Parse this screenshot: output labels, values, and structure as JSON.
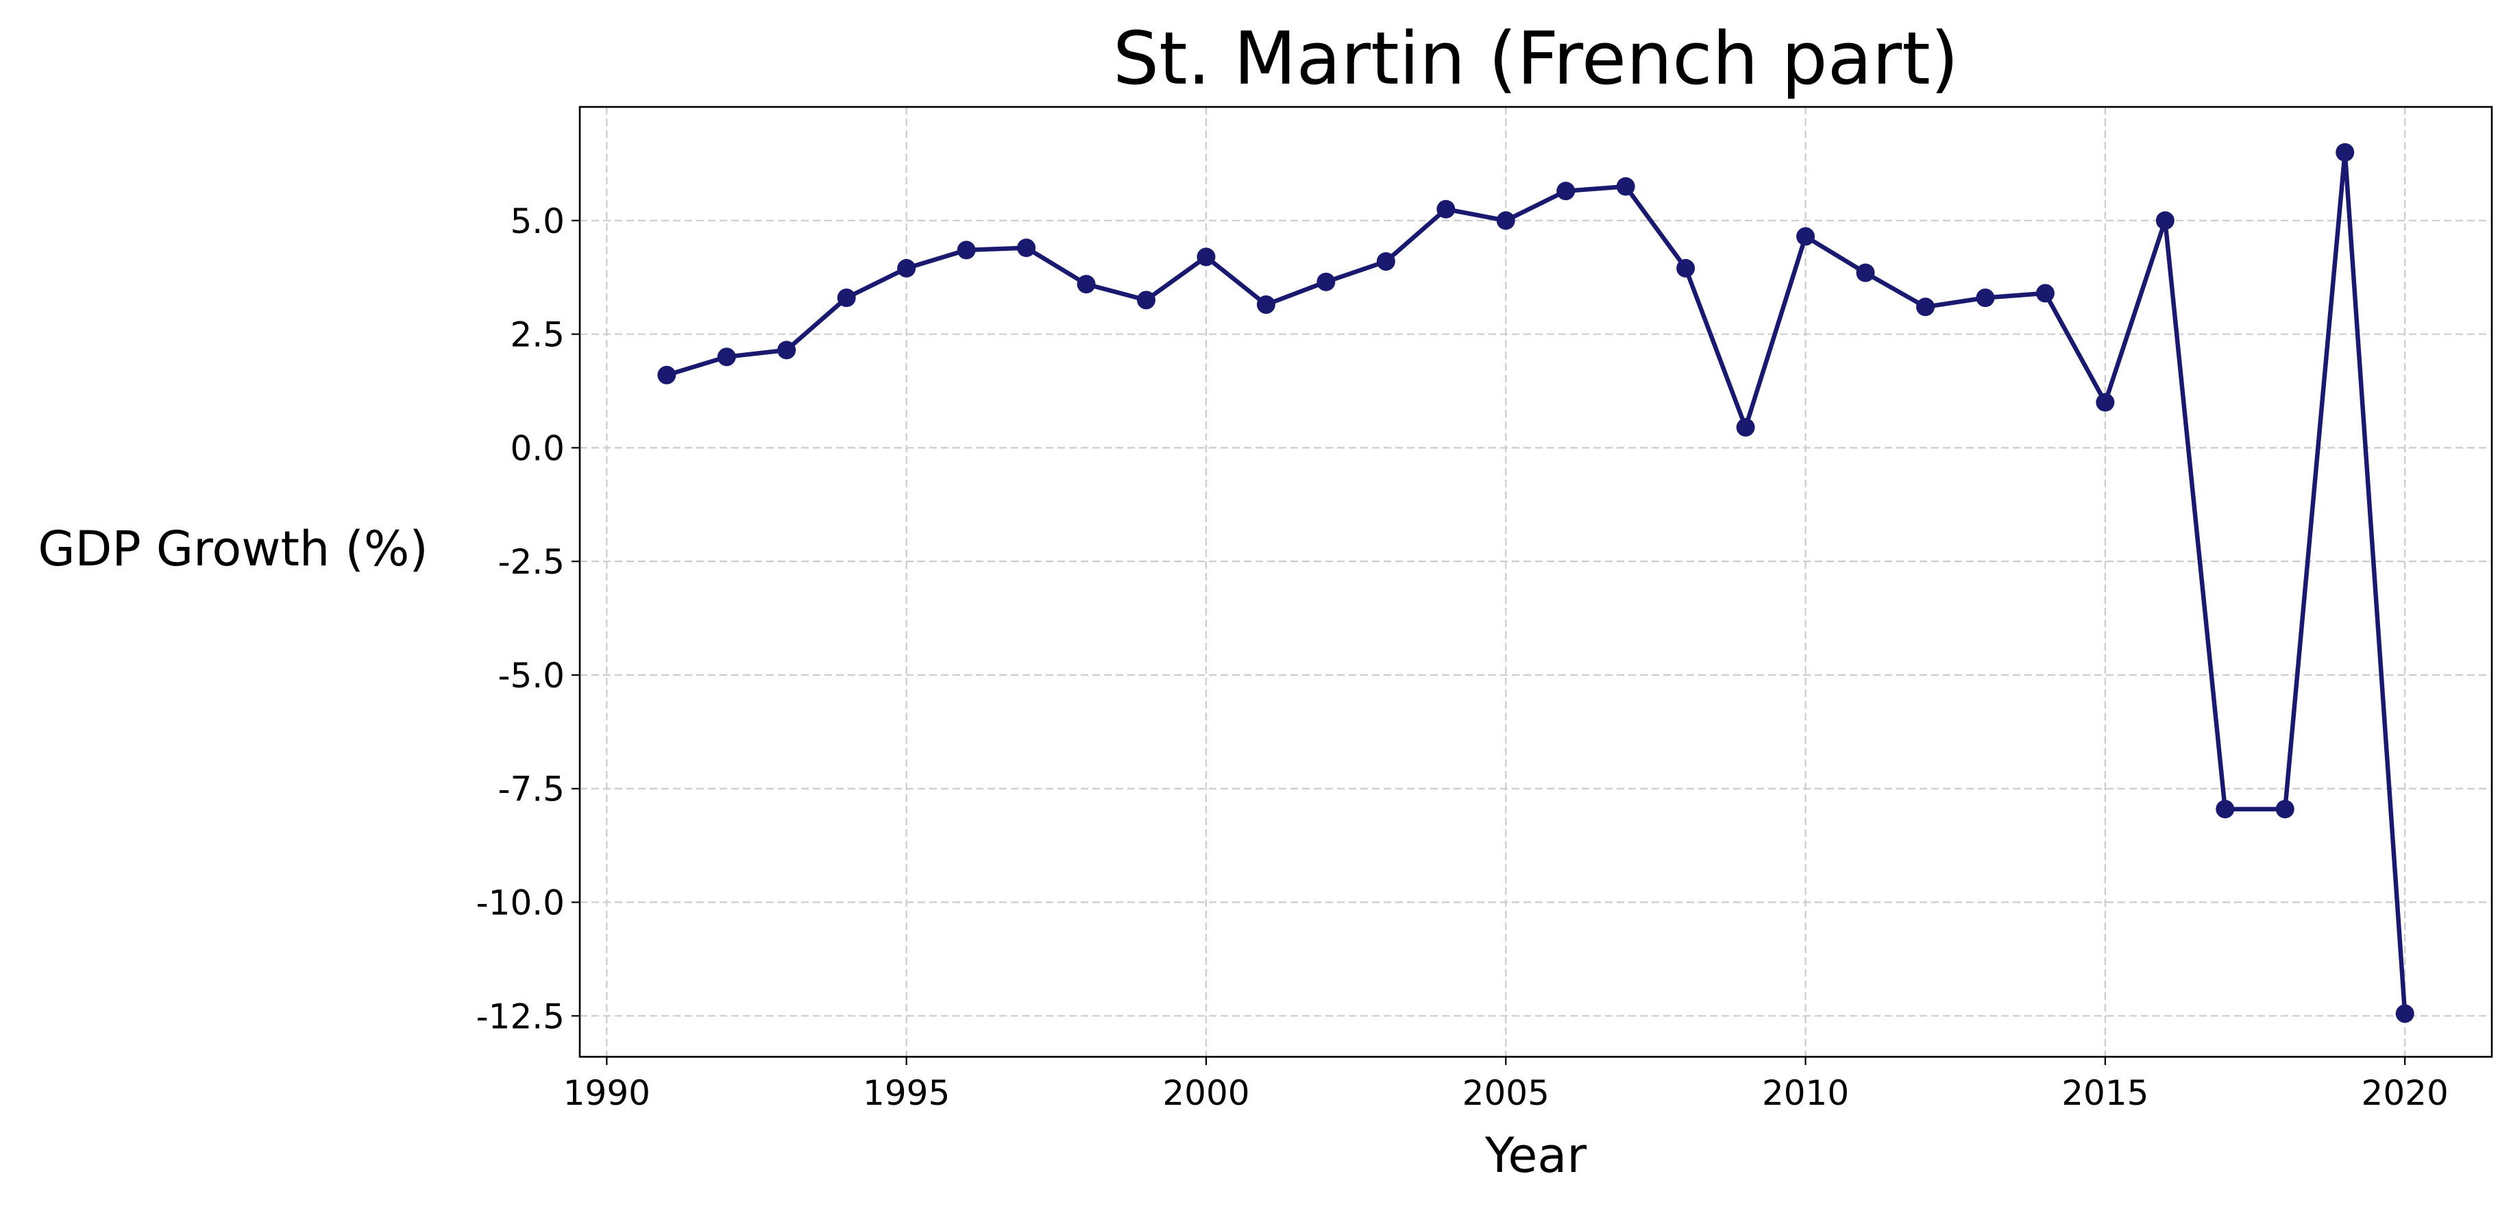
{
  "chart_data": {
    "type": "line",
    "title": "St. Martin (French part)",
    "xlabel": "Year",
    "ylabel": "GDP Growth (%)",
    "xlim": [
      1989.55,
      2021.45
    ],
    "ylim": [
      -13.4,
      7.5
    ],
    "x_ticks": [
      1990,
      1995,
      2000,
      2005,
      2010,
      2015,
      2020
    ],
    "x_tick_labels": [
      "1990",
      "1995",
      "2000",
      "2005",
      "2010",
      "2015",
      "2020"
    ],
    "y_ticks": [
      5.0,
      2.5,
      0.0,
      -2.5,
      -5.0,
      -7.5,
      -10.0,
      -12.5
    ],
    "y_tick_labels": [
      "5.0",
      "2.5",
      "0.0",
      "-2.5",
      "-5.0",
      "-7.5",
      "-10.0",
      "-12.5"
    ],
    "grid": true,
    "legend": "none",
    "series": [
      {
        "color": "#191970",
        "marker": "circle",
        "x": [
          1991,
          1992,
          1993,
          1994,
          1995,
          1996,
          1997,
          1998,
          1999,
          2000,
          2001,
          2002,
          2003,
          2004,
          2005,
          2006,
          2007,
          2008,
          2009,
          2010,
          2011,
          2012,
          2013,
          2014,
          2015,
          2016,
          2017,
          2018,
          2019,
          2020
        ],
        "y": [
          1.6,
          2.0,
          2.15,
          3.3,
          3.95,
          4.35,
          4.4,
          3.6,
          3.25,
          4.2,
          3.15,
          3.65,
          4.1,
          5.25,
          5.0,
          5.65,
          5.75,
          3.95,
          0.45,
          4.65,
          3.85,
          3.1,
          3.3,
          3.4,
          1.0,
          5.0,
          -7.95,
          -7.95,
          6.5,
          -12.45
        ]
      }
    ]
  }
}
